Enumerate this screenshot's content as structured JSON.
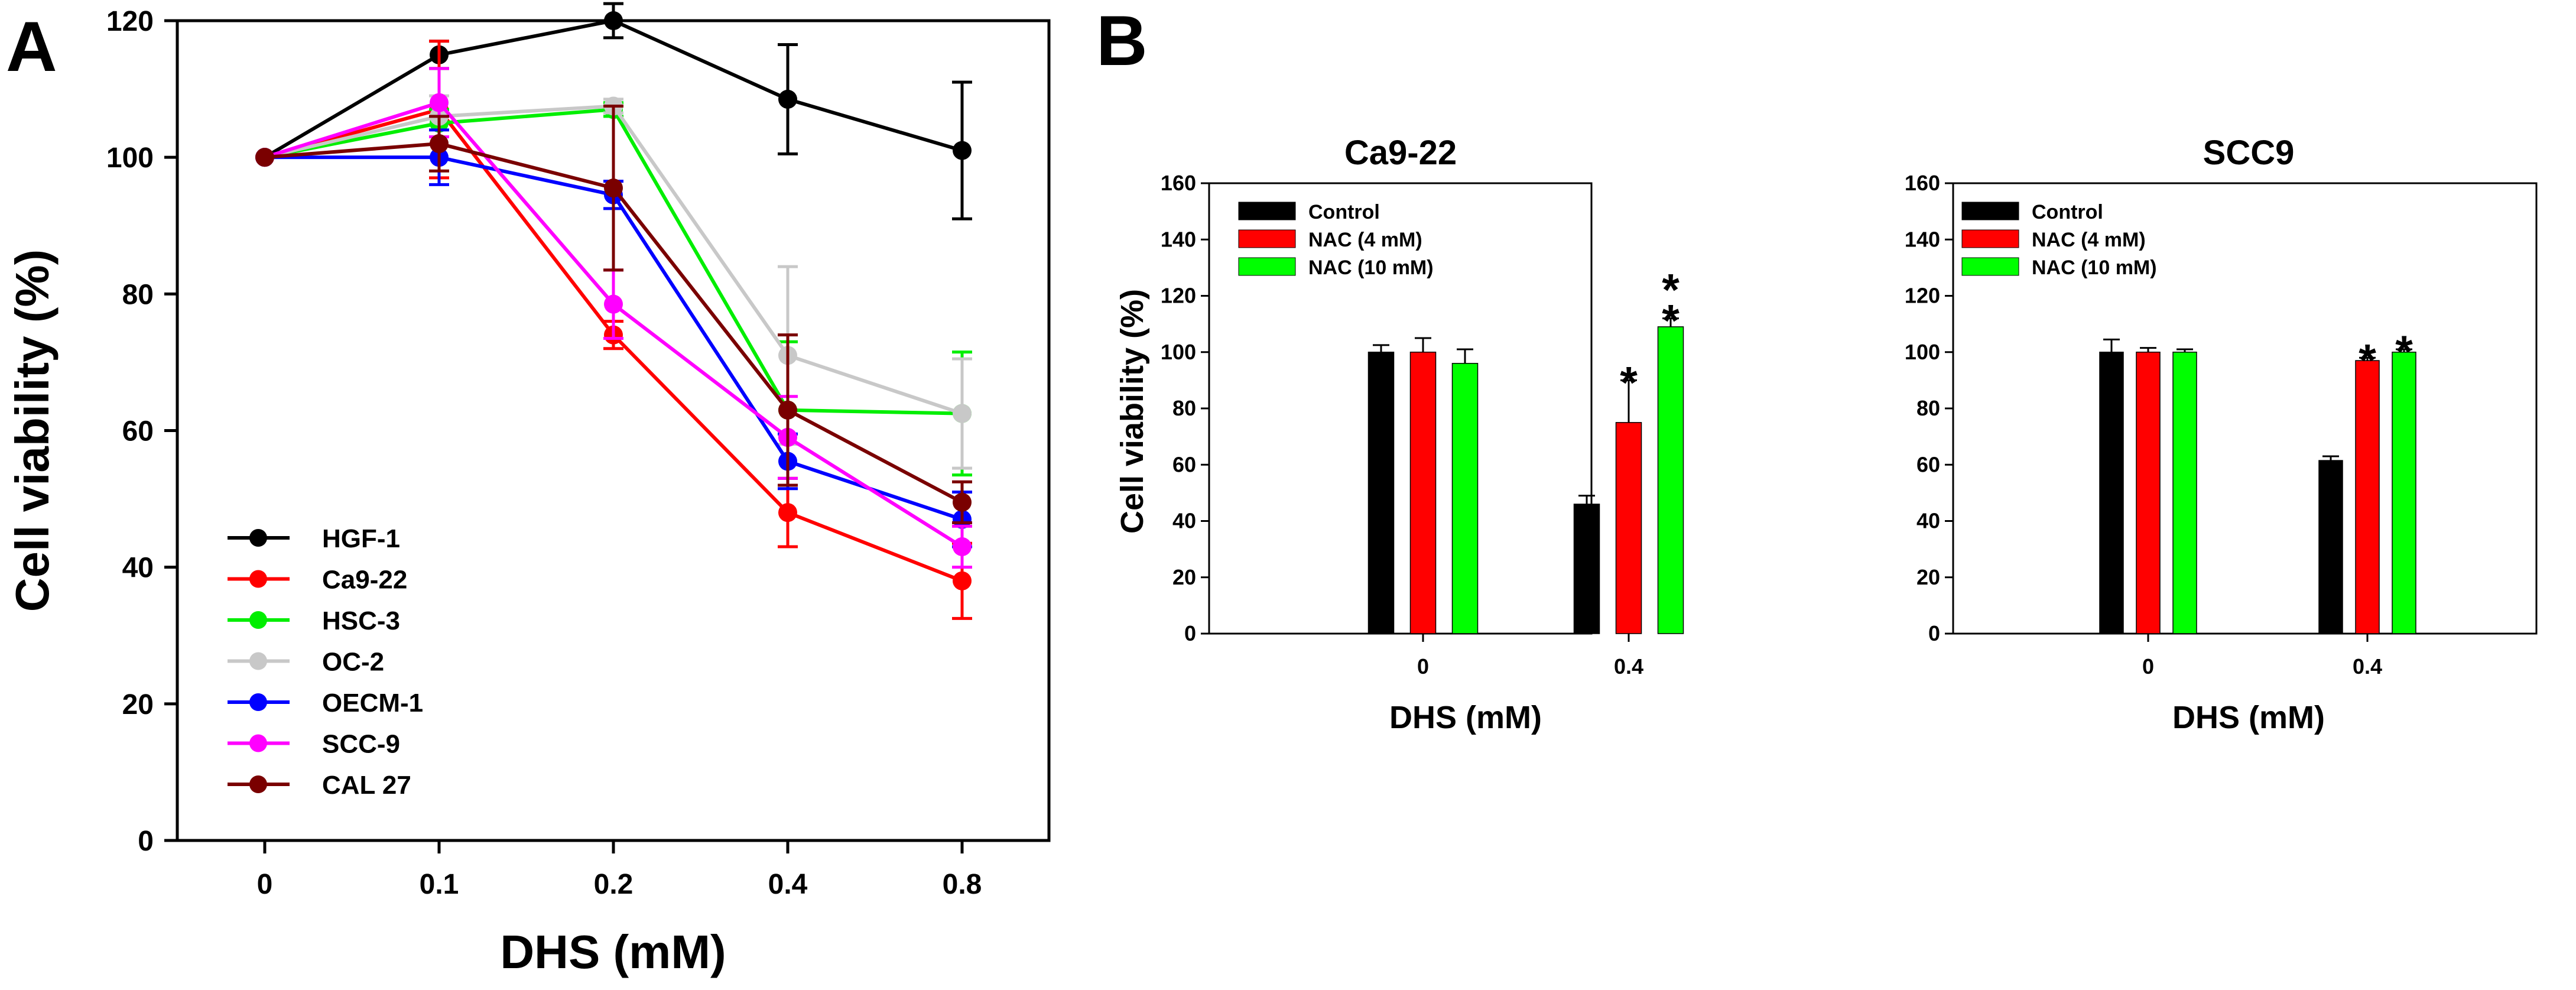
{
  "panels": {
    "a": {
      "letter": "A"
    },
    "b": {
      "letter": "B"
    }
  },
  "chart_data": [
    {
      "id": "A",
      "type": "line",
      "title": "",
      "xlabel": "DHS (mM)",
      "ylabel": "Cell viability (%)",
      "categories": [
        "0",
        "0.1",
        "0.2",
        "0.4",
        "0.8"
      ],
      "ylim": [
        0,
        120
      ],
      "yticks": [
        0,
        20,
        40,
        60,
        80,
        100,
        120
      ],
      "legend_position": "bottom-left",
      "series": [
        {
          "name": "HGF-1",
          "color": "#000000",
          "values": [
            100,
            115,
            120,
            108.5,
            101
          ],
          "errors": [
            0,
            2,
            2.5,
            8,
            10
          ]
        },
        {
          "name": "Ca9-22",
          "color": "#ff0000",
          "values": [
            100,
            107,
            74,
            48,
            38
          ],
          "errors": [
            0,
            10,
            2,
            5,
            5.5
          ]
        },
        {
          "name": "HSC-3",
          "color": "#00ee00",
          "values": [
            100,
            105,
            107,
            63,
            62.5
          ],
          "errors": [
            0,
            2,
            1,
            10,
            9
          ]
        },
        {
          "name": "OC-2",
          "color": "#c8c8c8",
          "values": [
            100,
            106,
            107.5,
            71,
            62.5
          ],
          "errors": [
            0,
            3,
            1,
            13,
            8
          ]
        },
        {
          "name": "OECM-1",
          "color": "#0000ff",
          "values": [
            100,
            100,
            94.5,
            55.5,
            47
          ],
          "errors": [
            0,
            4,
            2,
            4,
            4
          ]
        },
        {
          "name": "SCC-9",
          "color": "#ff00ff",
          "values": [
            100,
            108,
            78.5,
            59,
            43
          ],
          "errors": [
            0,
            5,
            5,
            6,
            3
          ]
        },
        {
          "name": "CAL 27",
          "color": "#7a0000",
          "values": [
            100,
            102,
            95.5,
            63,
            49.5
          ],
          "errors": [
            0,
            4,
            12,
            11,
            3
          ]
        }
      ]
    },
    {
      "id": "B-left",
      "type": "bar",
      "title": "Ca9-22",
      "xlabel": "DHS (mM)",
      "ylabel": "Cell viability (%)",
      "categories": [
        "0",
        "0.4"
      ],
      "ylim": [
        0,
        160
      ],
      "yticks": [
        0,
        20,
        40,
        60,
        80,
        100,
        120,
        140,
        160
      ],
      "legend_position": "top-left",
      "series": [
        {
          "name": "Control",
          "color": "#000000",
          "values": [
            100,
            46
          ],
          "errors": [
            2.5,
            3
          ]
        },
        {
          "name": "NAC (4 mM)",
          "color": "#ff0000",
          "values": [
            100,
            75
          ],
          "errors": [
            5,
            15
          ]
        },
        {
          "name": "NAC (10 mM)",
          "color": "#00ff00",
          "values": [
            96,
            109
          ],
          "errors": [
            5,
            3
          ]
        }
      ],
      "annotations": [
        {
          "category": "0.4",
          "series": "NAC (4 mM)",
          "text": "*"
        },
        {
          "category": "0.4",
          "series": "NAC (10 mM)",
          "text": "**"
        }
      ]
    },
    {
      "id": "B-right",
      "type": "bar",
      "title": "SCC9",
      "xlabel": "DHS (mM)",
      "ylabel": "",
      "categories": [
        "0",
        "0.4"
      ],
      "ylim": [
        0,
        160
      ],
      "yticks": [
        0,
        20,
        40,
        60,
        80,
        100,
        120,
        140,
        160
      ],
      "legend_position": "top-left",
      "series": [
        {
          "name": "Control",
          "color": "#000000",
          "values": [
            100,
            61.5
          ],
          "errors": [
            4.5,
            1.5
          ]
        },
        {
          "name": "NAC (4 mM)",
          "color": "#ff0000",
          "values": [
            100,
            97
          ],
          "errors": [
            1.5,
            1
          ]
        },
        {
          "name": "NAC (10 mM)",
          "color": "#00ff00",
          "values": [
            100,
            100
          ],
          "errors": [
            1,
            1
          ]
        }
      ],
      "annotations": [
        {
          "category": "0.4",
          "series": "NAC (4 mM)",
          "text": "*"
        },
        {
          "category": "0.4",
          "series": "NAC (10 mM)",
          "text": "*"
        }
      ]
    }
  ]
}
